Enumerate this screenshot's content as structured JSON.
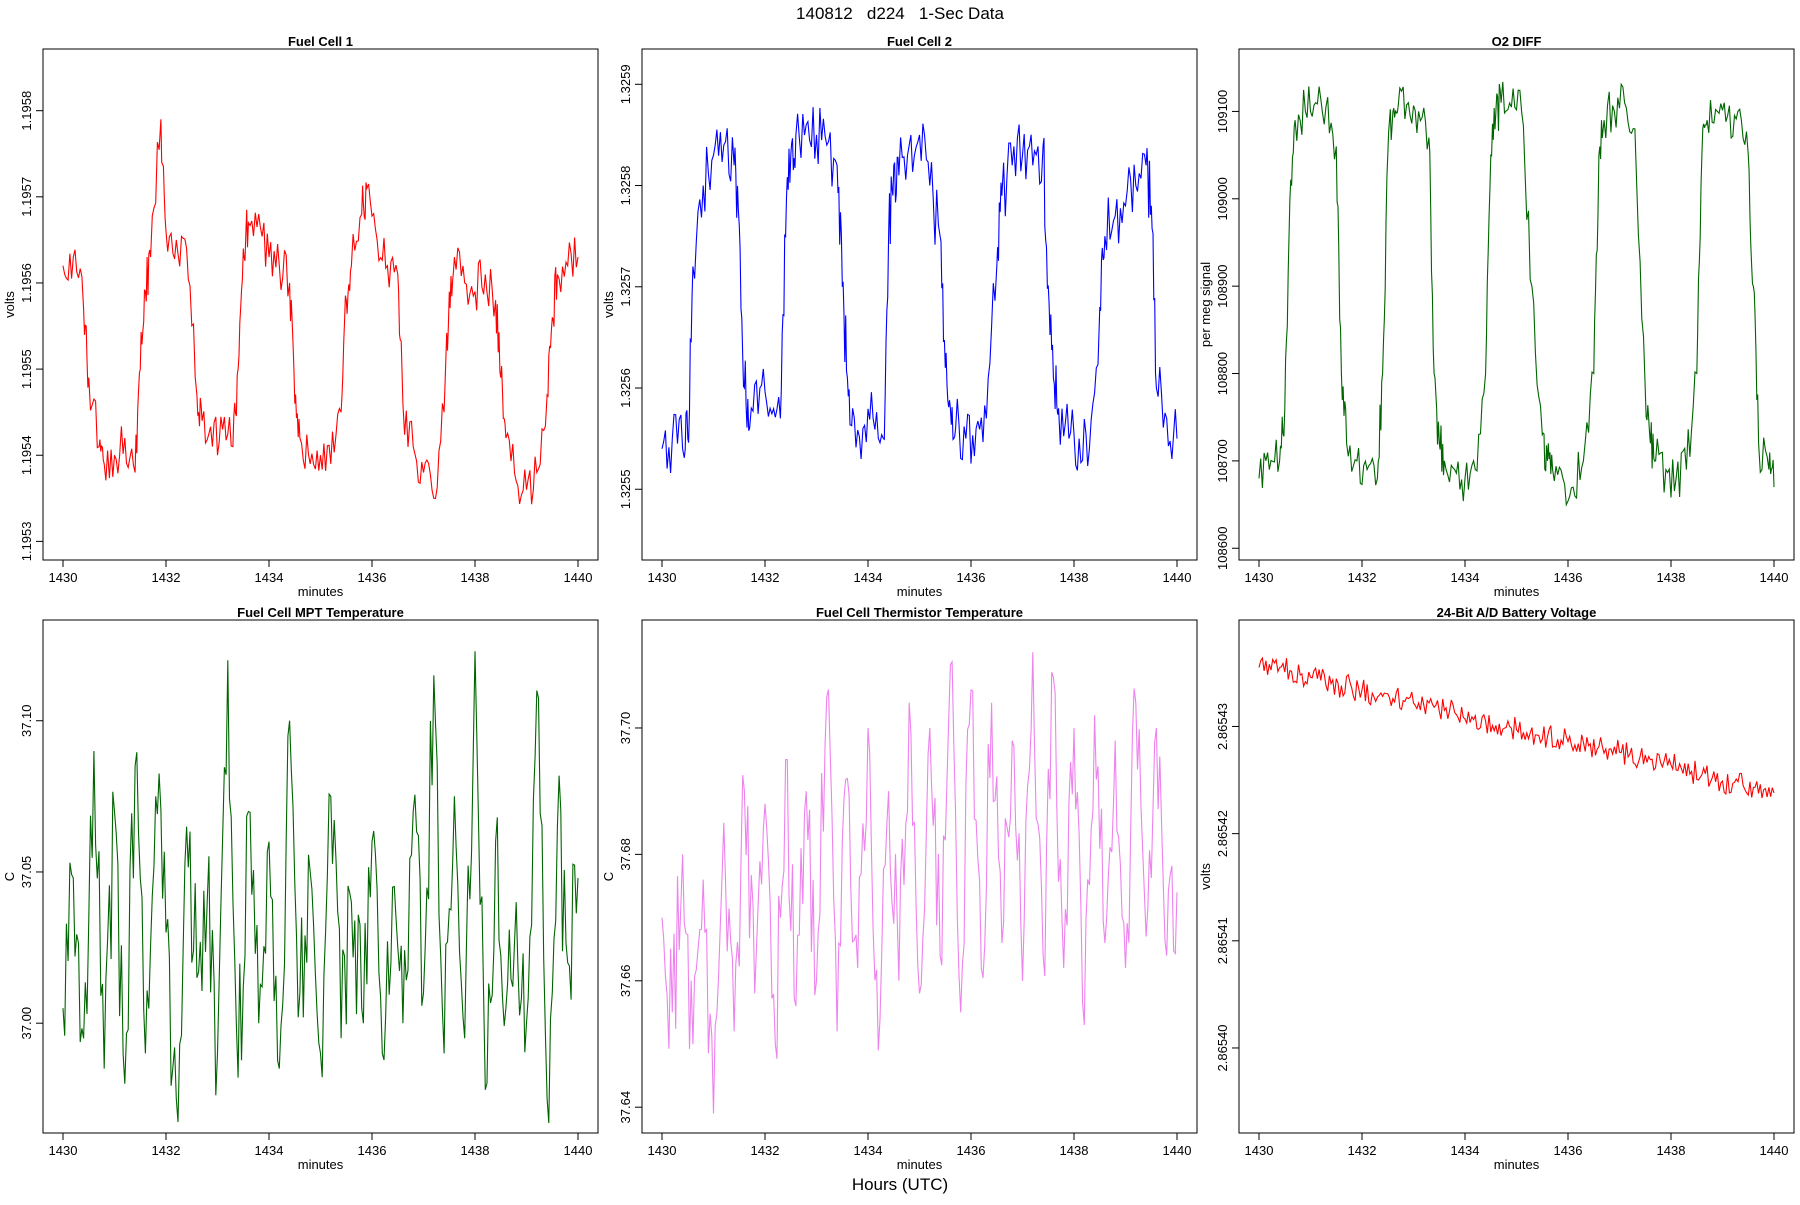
{
  "figure": {
    "suptitle": "140812   d224   1-Sec Data",
    "supxlabel": "Hours (UTC)"
  },
  "chart_data": [
    {
      "id": "fc1",
      "type": "line",
      "title": "Fuel Cell 1",
      "xlabel": "minutes",
      "ylabel": "volts",
      "xlim": [
        1430,
        1440
      ],
      "ylim": [
        1.19529,
        1.19586
      ],
      "xticks": [
        1430,
        1432,
        1434,
        1436,
        1438,
        1440
      ],
      "yticks": [
        1.1953,
        1.1954,
        1.1955,
        1.1956,
        1.1957,
        1.1958
      ],
      "ytick_labels": [
        "1.1953",
        "1.1954",
        "1.1955",
        "1.1956",
        "1.1957",
        "1.1958"
      ],
      "color": "#ff0000",
      "series": [
        {
          "name": "Fuel Cell 1",
          "x": [
            1430.0,
            1430.2,
            1430.4,
            1430.5,
            1430.7,
            1430.8,
            1431.0,
            1431.2,
            1431.4,
            1431.5,
            1431.6,
            1431.7,
            1431.9,
            1432.0,
            1432.2,
            1432.4,
            1432.6,
            1432.7,
            1432.9,
            1433.1,
            1433.3,
            1433.4,
            1433.5,
            1433.6,
            1433.8,
            1434.0,
            1434.2,
            1434.4,
            1434.5,
            1434.6,
            1434.8,
            1435.0,
            1435.2,
            1435.4,
            1435.5,
            1435.6,
            1435.8,
            1435.9,
            1436.1,
            1436.3,
            1436.5,
            1436.6,
            1436.8,
            1437.0,
            1437.2,
            1437.4,
            1437.5,
            1437.6,
            1437.8,
            1438.0,
            1438.2,
            1438.4,
            1438.5,
            1438.6,
            1438.8,
            1439.0,
            1439.2,
            1439.4,
            1439.5,
            1439.6,
            1439.8,
            1440.0
          ],
          "y": [
            1.19562,
            1.19563,
            1.19557,
            1.19549,
            1.19541,
            1.19539,
            1.1954,
            1.19542,
            1.19538,
            1.1955,
            1.19559,
            1.19563,
            1.19579,
            1.19566,
            1.19565,
            1.19564,
            1.19547,
            1.19544,
            1.19541,
            1.19543,
            1.19541,
            1.1955,
            1.19564,
            1.19567,
            1.19568,
            1.19563,
            1.19562,
            1.1956,
            1.19546,
            1.19542,
            1.19539,
            1.1954,
            1.19539,
            1.19545,
            1.19558,
            1.19562,
            1.19568,
            1.19571,
            1.19565,
            1.19562,
            1.19561,
            1.19546,
            1.19541,
            1.19538,
            1.19535,
            1.19545,
            1.19559,
            1.19563,
            1.1956,
            1.19559,
            1.19561,
            1.19558,
            1.19549,
            1.19542,
            1.19537,
            1.19536,
            1.19538,
            1.19547,
            1.19556,
            1.19561,
            1.19562,
            1.19563
          ]
        }
      ]
    },
    {
      "id": "fc2",
      "type": "line",
      "title": "Fuel Cell 2",
      "xlabel": "minutes",
      "ylabel": "volts",
      "xlim": [
        1430,
        1440
      ],
      "ylim": [
        1.32544,
        1.325925
      ],
      "xticks": [
        1430,
        1432,
        1434,
        1436,
        1438,
        1440
      ],
      "yticks": [
        1.3255,
        1.3256,
        1.3257,
        1.3258,
        1.3259
      ],
      "ytick_labels": [
        "1.3255",
        "1.3256",
        "1.3257",
        "1.3258",
        "1.3259"
      ],
      "color": "#0000ff",
      "series": [
        {
          "name": "Fuel Cell 2",
          "x": [
            1430.0,
            1430.2,
            1430.4,
            1430.5,
            1430.6,
            1430.8,
            1431.0,
            1431.2,
            1431.4,
            1431.5,
            1431.6,
            1431.7,
            1431.9,
            1432.1,
            1432.3,
            1432.4,
            1432.5,
            1432.6,
            1432.8,
            1433.0,
            1433.2,
            1433.4,
            1433.5,
            1433.6,
            1433.7,
            1433.9,
            1434.1,
            1434.3,
            1434.4,
            1434.5,
            1434.6,
            1434.8,
            1435.0,
            1435.2,
            1435.4,
            1435.5,
            1435.6,
            1435.7,
            1435.9,
            1436.1,
            1436.3,
            1436.5,
            1436.6,
            1436.8,
            1437.0,
            1437.2,
            1437.4,
            1437.5,
            1437.6,
            1437.7,
            1437.9,
            1438.1,
            1438.3,
            1438.5,
            1438.6,
            1438.8,
            1439.0,
            1439.2,
            1439.4,
            1439.5,
            1439.6,
            1439.8,
            1440.0
          ],
          "y": [
            1.32554,
            1.32555,
            1.32554,
            1.32555,
            1.32572,
            1.3258,
            1.32583,
            1.32584,
            1.32582,
            1.32576,
            1.3256,
            1.32556,
            1.3256,
            1.32558,
            1.32557,
            1.32575,
            1.32583,
            1.32585,
            1.32586,
            1.32585,
            1.32584,
            1.32582,
            1.3257,
            1.32561,
            1.32558,
            1.32556,
            1.32557,
            1.32555,
            1.32575,
            1.32582,
            1.32581,
            1.32584,
            1.32585,
            1.3258,
            1.32575,
            1.32562,
            1.32558,
            1.32556,
            1.32555,
            1.32556,
            1.32557,
            1.32572,
            1.32579,
            1.32582,
            1.32583,
            1.32582,
            1.32584,
            1.3257,
            1.32561,
            1.32558,
            1.32555,
            1.32555,
            1.32554,
            1.32568,
            1.32575,
            1.32577,
            1.32578,
            1.3258,
            1.32582,
            1.32578,
            1.3256,
            1.32557,
            1.32555
          ]
        }
      ]
    },
    {
      "id": "o2",
      "type": "line",
      "title": "O2 DIFF",
      "xlabel": "minutes",
      "ylabel": "per meg signal",
      "xlim": [
        1430,
        1440
      ],
      "ylim": [
        108598,
        109160
      ],
      "xticks": [
        1430,
        1432,
        1434,
        1436,
        1438,
        1440
      ],
      "yticks": [
        108600,
        108700,
        108800,
        108900,
        109000,
        109100
      ],
      "ytick_labels": [
        "108600",
        "108700",
        "108800",
        "108900",
        "109000",
        "109100"
      ],
      "color": "#006400",
      "series": [
        {
          "name": "O2 DIFF",
          "x": [
            1430.0,
            1430.2,
            1430.4,
            1430.5,
            1430.6,
            1430.7,
            1430.9,
            1431.1,
            1431.3,
            1431.5,
            1431.6,
            1431.7,
            1431.9,
            1432.1,
            1432.3,
            1432.4,
            1432.5,
            1432.6,
            1432.7,
            1432.9,
            1433.1,
            1433.3,
            1433.4,
            1433.5,
            1433.6,
            1433.8,
            1434.0,
            1434.2,
            1434.4,
            1434.5,
            1434.6,
            1434.7,
            1434.9,
            1435.1,
            1435.3,
            1435.5,
            1435.6,
            1435.7,
            1435.9,
            1436.1,
            1436.3,
            1436.5,
            1436.6,
            1436.7,
            1436.9,
            1437.1,
            1437.3,
            1437.5,
            1437.6,
            1437.7,
            1437.9,
            1438.1,
            1438.3,
            1438.5,
            1438.6,
            1438.7,
            1438.9,
            1439.1,
            1439.3,
            1439.5,
            1439.6,
            1439.7,
            1439.9,
            1440.0
          ],
          "y": [
            108680,
            108690,
            108700,
            108760,
            109000,
            109090,
            109100,
            109110,
            109105,
            109060,
            108800,
            108720,
            108700,
            108690,
            108680,
            108800,
            109050,
            109100,
            109105,
            109110,
            109100,
            109070,
            108800,
            108720,
            108700,
            108690,
            108680,
            108690,
            108800,
            109050,
            109100,
            109110,
            109105,
            109100,
            108900,
            108730,
            108700,
            108690,
            108680,
            108670,
            108700,
            108800,
            109050,
            109090,
            109100,
            109110,
            109080,
            108780,
            108720,
            108700,
            108690,
            108680,
            108690,
            108800,
            109050,
            109090,
            109100,
            109095,
            109100,
            109050,
            108900,
            108720,
            108690,
            108670
          ]
        }
      ]
    },
    {
      "id": "mpt",
      "type": "line",
      "title": "Fuel Cell MPT Temperature",
      "xlabel": "minutes",
      "ylabel": "C",
      "xlim": [
        1430,
        1440
      ],
      "ylim": [
        36.967,
        37.13
      ],
      "xticks": [
        1430,
        1432,
        1434,
        1436,
        1438,
        1440
      ],
      "yticks": [
        37.0,
        37.05,
        37.1
      ],
      "ytick_labels": [
        "37.00",
        "37.05",
        "37.10"
      ],
      "color": "#006400",
      "series": [
        {
          "name": "Fuel Cell MPT Temperature",
          "x": [
            1430.0,
            1430.2,
            1430.4,
            1430.6,
            1430.8,
            1431.0,
            1431.2,
            1431.4,
            1431.6,
            1431.8,
            1432.0,
            1432.2,
            1432.4,
            1432.6,
            1432.8,
            1433.0,
            1433.2,
            1433.4,
            1433.6,
            1433.8,
            1434.0,
            1434.2,
            1434.4,
            1434.6,
            1434.8,
            1435.0,
            1435.2,
            1435.4,
            1435.6,
            1435.8,
            1436.0,
            1436.2,
            1436.4,
            1436.6,
            1436.8,
            1437.0,
            1437.2,
            1437.4,
            1437.6,
            1437.8,
            1438.0,
            1438.2,
            1438.4,
            1438.6,
            1438.8,
            1439.0,
            1439.2,
            1439.4,
            1439.6,
            1439.8,
            1440.0
          ],
          "y": [
            37.005,
            37.048,
            36.995,
            37.09,
            36.985,
            37.07,
            36.98,
            37.085,
            36.99,
            37.075,
            37.03,
            36.975,
            37.065,
            37.015,
            37.04,
            36.99,
            37.12,
            36.982,
            37.07,
            37.0,
            37.06,
            36.985,
            37.1,
            37.01,
            37.05,
            36.99,
            37.075,
            36.995,
            37.04,
            37.005,
            37.06,
            36.99,
            37.045,
            37.0,
            37.07,
            37.01,
            37.115,
            36.99,
            37.075,
            36.995,
            37.123,
            36.978,
            37.06,
            37.005,
            37.04,
            37.0,
            37.11,
            36.975,
            37.065,
            37.02,
            37.048
          ]
        }
      ]
    },
    {
      "id": "therm",
      "type": "line",
      "title": "Fuel Cell Thermistor Temperature",
      "xlabel": "minutes",
      "ylabel": "C",
      "xlim": [
        1430,
        1440
      ],
      "ylim": [
        37.6375,
        37.7155
      ],
      "xticks": [
        1430,
        1432,
        1434,
        1436,
        1438,
        1440
      ],
      "yticks": [
        37.64,
        37.66,
        37.68,
        37.7
      ],
      "ytick_labels": [
        "37.64",
        "37.66",
        "37.68",
        "37.70"
      ],
      "color": "#ee82ee",
      "series": [
        {
          "name": "Fuel Cell Thermistor Temperature",
          "x": [
            1430.0,
            1430.2,
            1430.4,
            1430.6,
            1430.8,
            1431.0,
            1431.2,
            1431.4,
            1431.6,
            1431.8,
            1432.0,
            1432.2,
            1432.4,
            1432.6,
            1432.8,
            1433.0,
            1433.2,
            1433.4,
            1433.6,
            1433.8,
            1434.0,
            1434.2,
            1434.4,
            1434.6,
            1434.8,
            1435.0,
            1435.2,
            1435.4,
            1435.6,
            1435.8,
            1436.0,
            1436.2,
            1436.4,
            1436.6,
            1436.8,
            1437.0,
            1437.2,
            1437.4,
            1437.6,
            1437.8,
            1438.0,
            1438.2,
            1438.4,
            1438.6,
            1438.8,
            1439.0,
            1439.2,
            1439.4,
            1439.6,
            1439.8,
            1440.0
          ],
          "y": [
            37.67,
            37.655,
            37.68,
            37.65,
            37.676,
            37.639,
            37.685,
            37.652,
            37.69,
            37.658,
            37.688,
            37.65,
            37.695,
            37.656,
            37.69,
            37.66,
            37.705,
            37.652,
            37.692,
            37.662,
            37.7,
            37.649,
            37.69,
            37.66,
            37.704,
            37.658,
            37.7,
            37.664,
            37.71,
            37.655,
            37.706,
            37.662,
            37.704,
            37.666,
            37.698,
            37.66,
            37.712,
            37.664,
            37.708,
            37.662,
            37.7,
            37.653,
            37.702,
            37.666,
            37.698,
            37.662,
            37.704,
            37.667,
            37.7,
            37.664,
            37.674
          ]
        }
      ]
    },
    {
      "id": "batt",
      "type": "line",
      "title": "24-Bit A/D Battery Voltage",
      "xlabel": "minutes",
      "ylabel": "volts",
      "xlim": [
        1430,
        1440
      ],
      "ylim": [
        2.865393,
        2.865439
      ],
      "xticks": [
        1430,
        1432,
        1434,
        1436,
        1438,
        1440
      ],
      "yticks": [
        2.8654,
        2.86541,
        2.86542,
        2.86543
      ],
      "ytick_labels": [
        "2.86540",
        "2.86541",
        "2.86542",
        "2.86543"
      ],
      "color": "#ff0000",
      "series": [
        {
          "name": "24-Bit A/D Battery Voltage",
          "x": [
            1430.0,
            1430.2,
            1430.4,
            1430.6,
            1430.8,
            1431.0,
            1431.2,
            1431.4,
            1431.6,
            1431.8,
            1432.0,
            1432.2,
            1432.4,
            1432.6,
            1432.8,
            1433.0,
            1433.2,
            1433.4,
            1433.6,
            1433.8,
            1434.0,
            1434.2,
            1434.4,
            1434.6,
            1434.8,
            1435.0,
            1435.2,
            1435.4,
            1435.6,
            1435.8,
            1436.0,
            1436.2,
            1436.4,
            1436.6,
            1436.8,
            1437.0,
            1437.2,
            1437.4,
            1437.6,
            1437.8,
            1438.0,
            1438.2,
            1438.4,
            1438.6,
            1438.8,
            1439.0,
            1439.2,
            1439.4,
            1439.6,
            1439.8,
            1440.0
          ],
          "y": [
            2.8654355,
            2.8654358,
            2.8654355,
            2.8654352,
            2.8654348,
            2.8654346,
            2.8654343,
            2.865434,
            2.8654338,
            2.8654336,
            2.8654334,
            2.8654331,
            2.8654328,
            2.8654326,
            2.8654324,
            2.8654322,
            2.865432,
            2.8654318,
            2.8654315,
            2.8654313,
            2.8654307,
            2.865431,
            2.8654305,
            2.8654301,
            2.8654299,
            2.8654297,
            2.8654294,
            2.8654292,
            2.865429,
            2.8654288,
            2.8654286,
            2.8654284,
            2.8654282,
            2.8654281,
            2.8654279,
            2.8654276,
            2.8654274,
            2.8654272,
            2.8654269,
            2.8654266,
            2.8654264,
            2.8654261,
            2.8654258,
            2.8654255,
            2.8654252,
            2.8654249,
            2.8654247,
            2.8654245,
            2.8654243,
            2.8654241,
            2.8654238
          ]
        }
      ]
    }
  ]
}
